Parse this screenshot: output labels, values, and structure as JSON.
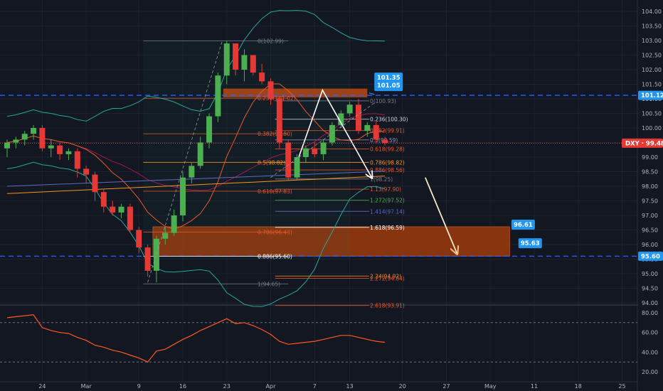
{
  "colors": {
    "background": "#131722",
    "grid": "#1e222d",
    "up": "#26a69a",
    "down": "#ef5350",
    "upCandle": "#4caf50",
    "downCandle": "#e53935",
    "bollinger": "#26a69a",
    "ma": "#e8572a",
    "blueDash": "#2962ff",
    "zone": "#b5440f",
    "tag": "#2196f3",
    "rsi": "#ff5722"
  },
  "chart_data": [
    {
      "type": "candlestick",
      "symbol_tag": "DXY · 99.48",
      "ylim": [
        94.0,
        104.0
      ],
      "y_ticks": [
        "104.00",
        "103.50",
        "103.00",
        "102.50",
        "102.00",
        "101.50",
        "101.00",
        "100.50",
        "100.00",
        "99.50",
        "99.00",
        "98.50",
        "98.00",
        "97.50",
        "97.00",
        "96.50",
        "96.00",
        "95.50",
        "95.00",
        "94.50",
        "94.00"
      ],
      "y_tick_values": [
        104.0,
        103.5,
        103.0,
        102.5,
        102.0,
        101.5,
        101.0,
        100.5,
        100.0,
        99.5,
        99.0,
        98.5,
        98.0,
        97.5,
        97.0,
        96.5,
        96.0,
        95.5,
        95.0,
        94.5,
        94.0
      ],
      "x_ticks": [
        "24",
        "Mar",
        "9",
        "16",
        "23",
        "Apr",
        "7",
        "13",
        "20",
        "27",
        "May",
        "11",
        "18",
        "25"
      ],
      "x_tick_index": [
        4,
        9,
        15,
        20,
        25,
        30,
        35,
        39,
        45,
        50,
        55,
        60,
        65,
        70
      ],
      "price_tags": [
        {
          "label": "101.12",
          "value": 101.12
        },
        {
          "label": "95.60",
          "value": 95.6
        }
      ],
      "callouts": [
        {
          "label": "101.35",
          "value": 101.35
        },
        {
          "label": "101.05",
          "value": 101.05
        },
        {
          "label": "96.61",
          "value": 96.61
        },
        {
          "label": "95.63",
          "value": 95.63
        }
      ],
      "fib_left": [
        {
          "label": "0(102.99)",
          "value": 102.99
        },
        {
          "label": "0.236(101.02)",
          "value": 101.02
        },
        {
          "label": "0.382(99.80)",
          "value": 99.8
        },
        {
          "label": "0.5(98.82)",
          "value": 98.82
        },
        {
          "label": "0.618(97.83)",
          "value": 97.83
        },
        {
          "label": "0.786(96.43)",
          "value": 96.43
        },
        {
          "label": "0.886(95.60)",
          "value": 95.6
        },
        {
          "label": "1(94.65)",
          "value": 94.65
        }
      ],
      "fib_right": [
        {
          "label": "0(100.93)",
          "value": 100.93
        },
        {
          "label": "0.236(100.30)",
          "value": 100.3
        },
        {
          "label": "0.382(99.91)",
          "value": 99.91
        },
        {
          "label": "0.5(99.59)",
          "value": 99.59
        },
        {
          "label": "0.618(99.28)",
          "value": 99.28
        },
        {
          "label": "0.786(98.82)",
          "value": 98.82
        },
        {
          "label": "0.886(98.56)",
          "value": 98.56
        },
        {
          "label": "1(98.25)",
          "value": 98.25
        },
        {
          "label": "1.13(97.90)",
          "value": 97.9
        },
        {
          "label": "1.272(97.52)",
          "value": 97.52
        },
        {
          "label": "1.414(97.14)",
          "value": 97.14
        },
        {
          "label": "1.618(96.59)",
          "value": 96.59
        },
        {
          "label": "2.24(94.92)",
          "value": 94.92
        },
        {
          "label": "2.272(94.84)",
          "value": 94.84
        },
        {
          "label": "2.618(93.91)",
          "value": 93.91
        }
      ],
      "candles": [
        {
          "o": 99.3,
          "h": 99.6,
          "l": 99.0,
          "c": 99.5
        },
        {
          "o": 99.5,
          "h": 99.7,
          "l": 99.3,
          "c": 99.6
        },
        {
          "o": 99.6,
          "h": 99.9,
          "l": 99.4,
          "c": 99.8
        },
        {
          "o": 99.8,
          "h": 100.1,
          "l": 99.6,
          "c": 100.0
        },
        {
          "o": 100.0,
          "h": 100.1,
          "l": 99.2,
          "c": 99.3
        },
        {
          "o": 99.3,
          "h": 99.6,
          "l": 99.0,
          "c": 99.4
        },
        {
          "o": 99.4,
          "h": 99.5,
          "l": 98.9,
          "c": 99.1
        },
        {
          "o": 99.1,
          "h": 99.3,
          "l": 98.9,
          "c": 99.2
        },
        {
          "o": 99.2,
          "h": 99.3,
          "l": 98.3,
          "c": 98.6
        },
        {
          "o": 98.6,
          "h": 98.7,
          "l": 98.1,
          "c": 98.4
        },
        {
          "o": 98.4,
          "h": 98.5,
          "l": 97.5,
          "c": 97.8
        },
        {
          "o": 97.8,
          "h": 97.9,
          "l": 97.1,
          "c": 97.3
        },
        {
          "o": 97.3,
          "h": 97.5,
          "l": 97.0,
          "c": 97.1
        },
        {
          "o": 97.1,
          "h": 97.4,
          "l": 96.9,
          "c": 97.3
        },
        {
          "o": 97.3,
          "h": 97.4,
          "l": 96.4,
          "c": 96.5
        },
        {
          "o": 96.5,
          "h": 96.6,
          "l": 95.7,
          "c": 95.9
        },
        {
          "o": 95.9,
          "h": 96.0,
          "l": 94.9,
          "c": 95.1
        },
        {
          "o": 95.1,
          "h": 96.3,
          "l": 94.7,
          "c": 96.2
        },
        {
          "o": 96.2,
          "h": 96.6,
          "l": 96.0,
          "c": 96.4
        },
        {
          "o": 96.4,
          "h": 97.2,
          "l": 96.3,
          "c": 97.0
        },
        {
          "o": 97.0,
          "h": 98.5,
          "l": 96.8,
          "c": 98.3
        },
        {
          "o": 98.3,
          "h": 98.8,
          "l": 98.1,
          "c": 98.7
        },
        {
          "o": 98.7,
          "h": 99.7,
          "l": 98.6,
          "c": 99.5
        },
        {
          "o": 99.5,
          "h": 100.5,
          "l": 99.3,
          "c": 100.4
        },
        {
          "o": 100.4,
          "h": 101.9,
          "l": 100.2,
          "c": 101.8
        },
        {
          "o": 101.8,
          "h": 103.0,
          "l": 101.5,
          "c": 102.9
        },
        {
          "o": 102.9,
          "h": 102.9,
          "l": 101.8,
          "c": 102.0
        },
        {
          "o": 102.0,
          "h": 102.7,
          "l": 101.6,
          "c": 102.5
        },
        {
          "o": 102.5,
          "h": 102.5,
          "l": 101.8,
          "c": 101.9
        },
        {
          "o": 101.9,
          "h": 102.2,
          "l": 101.5,
          "c": 101.6
        },
        {
          "o": 101.6,
          "h": 101.7,
          "l": 100.8,
          "c": 101.0
        },
        {
          "o": 101.0,
          "h": 101.1,
          "l": 99.3,
          "c": 99.5
        },
        {
          "o": 99.5,
          "h": 99.6,
          "l": 98.2,
          "c": 98.3
        },
        {
          "o": 98.3,
          "h": 99.1,
          "l": 98.2,
          "c": 99.0
        },
        {
          "o": 99.0,
          "h": 99.4,
          "l": 98.8,
          "c": 99.3
        },
        {
          "o": 99.3,
          "h": 99.5,
          "l": 99.0,
          "c": 99.1
        },
        {
          "o": 99.1,
          "h": 99.6,
          "l": 98.9,
          "c": 99.5
        },
        {
          "o": 99.5,
          "h": 100.2,
          "l": 99.4,
          "c": 100.1
        },
        {
          "o": 100.1,
          "h": 100.6,
          "l": 100.0,
          "c": 100.5
        },
        {
          "o": 100.5,
          "h": 100.9,
          "l": 100.4,
          "c": 100.8
        },
        {
          "o": 100.8,
          "h": 101.0,
          "l": 99.8,
          "c": 99.9
        },
        {
          "o": 99.9,
          "h": 100.2,
          "l": 99.7,
          "c": 100.1
        },
        {
          "o": 100.1,
          "h": 100.2,
          "l": 99.5,
          "c": 99.6
        },
        {
          "o": 99.6,
          "h": 99.7,
          "l": 99.4,
          "c": 99.48
        }
      ]
    },
    {
      "type": "line",
      "ylim": [
        15,
        85
      ],
      "y_ticks": [
        "80.00",
        "60.00",
        "40.00",
        "20.00"
      ],
      "y_tick_values": [
        80,
        60,
        40,
        20
      ],
      "guides": [
        70,
        30
      ],
      "values": [
        75,
        76,
        77,
        78,
        65,
        62,
        60,
        59,
        55,
        52,
        47,
        45,
        42,
        40,
        37,
        34,
        30,
        41,
        43,
        48,
        53,
        57,
        62,
        66,
        70,
        74,
        69,
        70,
        67,
        63,
        58,
        51,
        48,
        49,
        50,
        51,
        53,
        55,
        57,
        57,
        55,
        53,
        51,
        50
      ]
    }
  ]
}
